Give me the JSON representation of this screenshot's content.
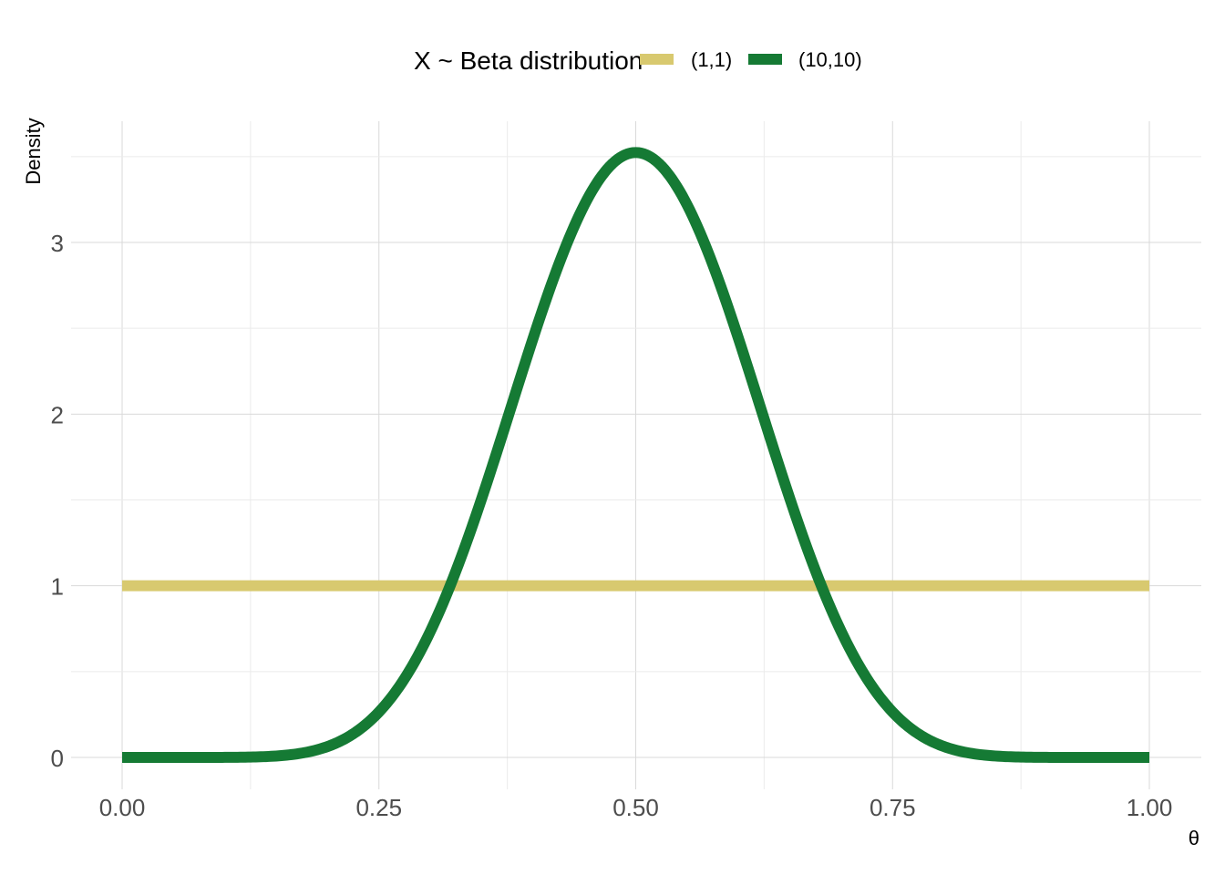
{
  "chart_data": {
    "type": "line",
    "title": "",
    "xlabel": "θ",
    "ylabel": "Density",
    "xlim": [
      0,
      1
    ],
    "ylim": [
      0,
      3.7
    ],
    "x_ticks": [
      0,
      0.25,
      0.5,
      0.75,
      1
    ],
    "x_tick_labels": [
      "0.00",
      "0.25",
      "0.50",
      "0.75",
      "1.00"
    ],
    "y_ticks": [
      0,
      1,
      2,
      3
    ],
    "y_tick_labels": [
      "0",
      "1",
      "2",
      "3"
    ],
    "grid": true,
    "legend": {
      "title": "X ~ Beta distribution",
      "placement": "top",
      "entries": [
        "(1,1)",
        "(10,10)"
      ]
    },
    "series": [
      {
        "name": "(1,1)",
        "color": "#d8c96f",
        "distribution": "beta",
        "alpha": 1,
        "beta": 1,
        "x": [
          0,
          0.25,
          0.5,
          0.75,
          1
        ],
        "values": [
          1,
          1,
          1,
          1,
          1
        ]
      },
      {
        "name": "(10,10)",
        "color": "#157a34",
        "distribution": "beta",
        "alpha": 10,
        "beta": 10,
        "x": [
          0,
          0.1,
          0.2,
          0.25,
          0.3,
          0.35,
          0.4,
          0.45,
          0.5,
          0.55,
          0.6,
          0.65,
          0.7,
          0.75,
          0.8,
          0.9,
          1
        ],
        "values": [
          0,
          0.0,
          0.04,
          0.23,
          0.72,
          1.54,
          2.52,
          3.25,
          3.52,
          3.25,
          2.52,
          1.54,
          0.72,
          0.23,
          0.04,
          0.0,
          0
        ]
      }
    ]
  }
}
